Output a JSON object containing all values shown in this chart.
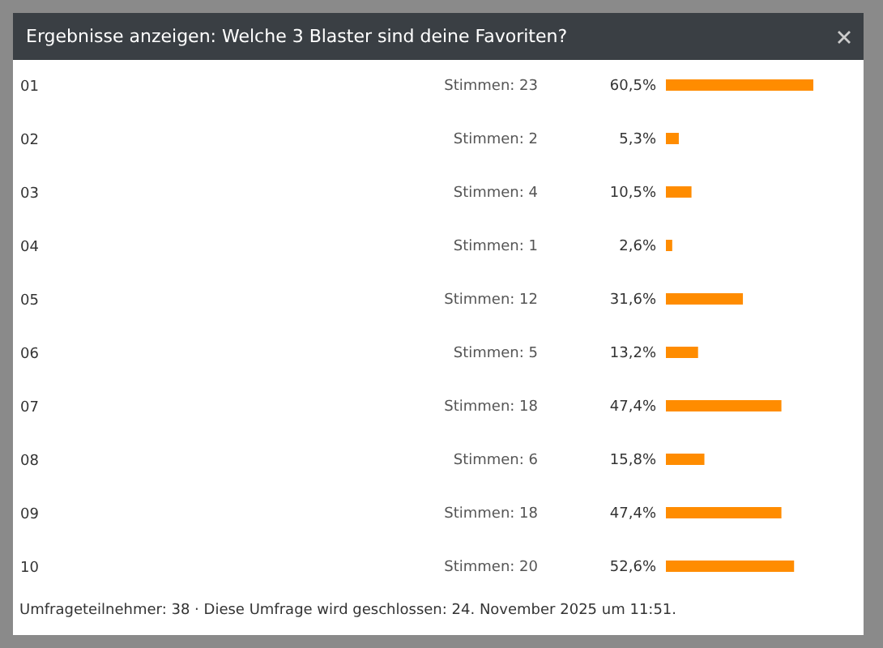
{
  "chart_data": {
    "type": "bar",
    "orientation": "horizontal",
    "title": "Ergebnisse anzeigen: Welche 3 Blaster sind deine Favoriten?",
    "categories": [
      "01",
      "02",
      "03",
      "04",
      "05",
      "06",
      "07",
      "08",
      "09",
      "10"
    ],
    "values": [
      60.5,
      5.3,
      10.5,
      2.6,
      31.6,
      13.2,
      47.4,
      15.8,
      47.4,
      52.6
    ],
    "value_labels": [
      "60,5%",
      "5,3%",
      "10,5%",
      "2,6%",
      "31,6%",
      "13,2%",
      "47,4%",
      "15,8%",
      "47,4%",
      "52,6%"
    ],
    "color": "#ff8c00",
    "tick_labels": "y",
    "annotations": [
      "Stimmen: 23",
      "Stimmen: 2",
      "Stimmen: 4",
      "Stimmen: 1",
      "Stimmen: 12",
      "Stimmen: 5",
      "Stimmen: 18",
      "Stimmen: 6",
      "Stimmen: 18",
      "Stimmen: 20",
      "Umfrageteilnehmer: 38 · Diese Umfrage wird geschlossen: 24. November 2025 um 11:51."
    ]
  }
}
